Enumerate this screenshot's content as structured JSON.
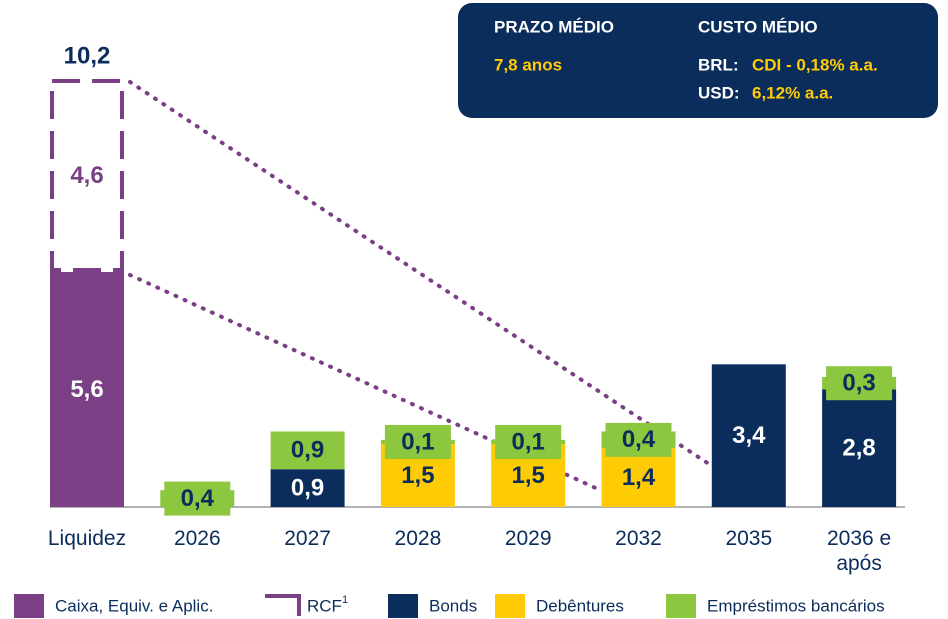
{
  "chart_data": {
    "type": "bar",
    "stacked": true,
    "categories": [
      "Liquidez",
      "2026",
      "2027",
      "2028",
      "2029",
      "2032",
      "2035",
      "2036 e após"
    ],
    "series": [
      {
        "name": "Caixa, Equiv. e Aplic.",
        "color": "#7b3f86",
        "style": "solid",
        "values": [
          5.6,
          null,
          null,
          null,
          null,
          null,
          null,
          null
        ],
        "value_labels": [
          "5,6",
          null,
          null,
          null,
          null,
          null,
          null,
          null
        ]
      },
      {
        "name": "RCF",
        "note": "1",
        "color": "#7b3f86",
        "style": "dashed",
        "values": [
          4.6,
          null,
          null,
          null,
          null,
          null,
          null,
          null
        ],
        "value_labels": [
          "4,6",
          null,
          null,
          null,
          null,
          null,
          null,
          null
        ]
      },
      {
        "name": "Bonds",
        "color": "#0b2d5b",
        "style": "solid",
        "values": [
          null,
          null,
          0.9,
          null,
          null,
          null,
          3.4,
          2.8
        ],
        "value_labels": [
          null,
          null,
          "0,9",
          null,
          null,
          null,
          "3,4",
          "2,8"
        ]
      },
      {
        "name": "Debêntures",
        "color": "#ffcb05",
        "style": "solid",
        "values": [
          null,
          null,
          null,
          1.5,
          1.5,
          1.4,
          null,
          null
        ],
        "value_labels": [
          null,
          null,
          null,
          "1,5",
          "1,5",
          "1,4",
          null,
          null
        ]
      },
      {
        "name": "Empréstimos bancários",
        "color": "#8dc63f",
        "style": "solid",
        "values": [
          null,
          0.4,
          0.9,
          0.1,
          0.1,
          0.4,
          null,
          0.3
        ],
        "value_labels": [
          null,
          "0,4",
          "0,9",
          "0,1",
          "0,1",
          "0,4",
          null,
          "0,3"
        ]
      }
    ],
    "totals": [
      10.2,
      null,
      null,
      null,
      null,
      null,
      null,
      null
    ],
    "totals_labels": [
      "10,2",
      null,
      null,
      null,
      null,
      null,
      null,
      null
    ]
  },
  "info_box": {
    "term_title": "PRAZO MÉDIO",
    "term_value": "7,8 anos",
    "cost_title": "CUSTO MÉDIO",
    "brl_label": "BRL:",
    "brl_value": "CDI - 0,18% a.a.",
    "usd_label": "USD:",
    "usd_value": "6,12% a.a."
  }
}
